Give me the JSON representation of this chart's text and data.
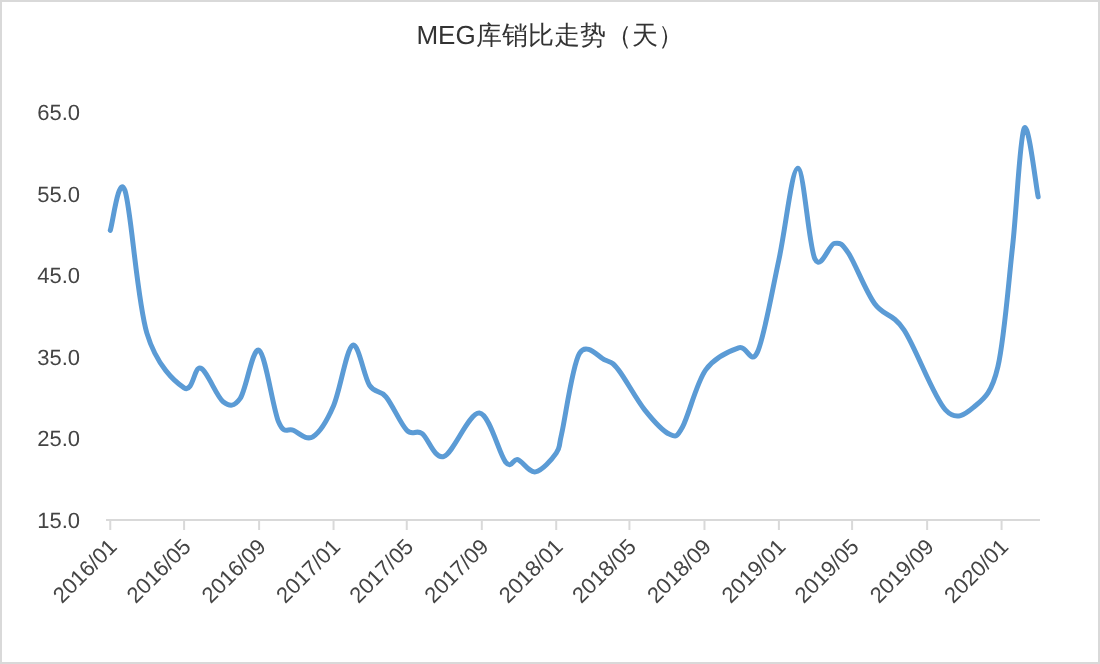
{
  "chart_data": {
    "type": "line",
    "title": "MEG库销比走势（天）",
    "x": [
      "2016-01-01",
      "2016-01-25",
      "2016-03-01",
      "2016-05-01",
      "2016-05-28",
      "2016-07-04",
      "2016-08-01",
      "2016-09-01",
      "2016-10-03",
      "2016-10-27",
      "2016-11-28",
      "2017-01-01",
      "2017-02-01",
      "2017-03-01",
      "2017-03-28",
      "2017-05-01",
      "2017-05-26",
      "2017-07-01",
      "2017-08-28",
      "2017-10-10",
      "2017-10-30",
      "2017-11-28",
      "2018-01-01",
      "2018-01-10",
      "2018-02-08",
      "2018-03-22",
      "2018-04-13",
      "2018-05-26",
      "2018-07-06",
      "2018-07-27",
      "2018-09-03",
      "2018-10-27",
      "2018-11-27",
      "2019-01-01",
      "2019-02-01",
      "2019-03-01",
      "2019-04-02",
      "2019-04-25",
      "2019-06-07",
      "2019-07-25",
      "2019-10-01",
      "2019-11-19",
      "2019-12-26",
      "2020-01-19",
      "2020-02-07",
      "2020-03-01"
    ],
    "series": [
      {
        "color": "#5b9bd5",
        "values": [
          50.5,
          55.4,
          37.9,
          31.2,
          33.6,
          29.5,
          29.9,
          35.8,
          27.0,
          26.0,
          25.2,
          29.0,
          36.4,
          31.5,
          30.1,
          26.0,
          25.6,
          22.8,
          28.1,
          22.1,
          22.4,
          20.9,
          23.2,
          25.6,
          35.4,
          34.6,
          33.4,
          28.5,
          25.5,
          26.4,
          33.4,
          36.1,
          35.6,
          46.9,
          58.1,
          47.0,
          48.9,
          47.7,
          41.5,
          38.3,
          28.5,
          29.0,
          33.8,
          48.5,
          63.0,
          54.6
        ]
      }
    ],
    "xlim": [
      "2015-12-25",
      "2020-03-04"
    ],
    "xticks": [
      {
        "value": "2016-01-01",
        "label": "2016/01"
      },
      {
        "value": "2016-05-01",
        "label": "2016/05"
      },
      {
        "value": "2016-09-01",
        "label": "2016/09"
      },
      {
        "value": "2017-01-01",
        "label": "2017/01"
      },
      {
        "value": "2017-05-01",
        "label": "2017/05"
      },
      {
        "value": "2017-09-01",
        "label": "2017/09"
      },
      {
        "value": "2018-01-01",
        "label": "2018/01"
      },
      {
        "value": "2018-05-01",
        "label": "2018/05"
      },
      {
        "value": "2018-09-01",
        "label": "2018/09"
      },
      {
        "value": "2019-01-01",
        "label": "2019/01"
      },
      {
        "value": "2019-05-01",
        "label": "2019/05"
      },
      {
        "value": "2019-09-01",
        "label": "2019/09"
      },
      {
        "value": "2020-01-01",
        "label": "2020/01"
      }
    ],
    "ylim": [
      15,
      65
    ],
    "yticks": [
      {
        "value": 15,
        "label": "15.0"
      },
      {
        "value": 25,
        "label": "25.0"
      },
      {
        "value": 35,
        "label": "35.0"
      },
      {
        "value": 45,
        "label": "45.0"
      },
      {
        "value": 55,
        "label": "55.0"
      },
      {
        "value": 65,
        "label": "65.0"
      }
    ],
    "grid": false,
    "marker": "none",
    "line_style": "solid"
  }
}
